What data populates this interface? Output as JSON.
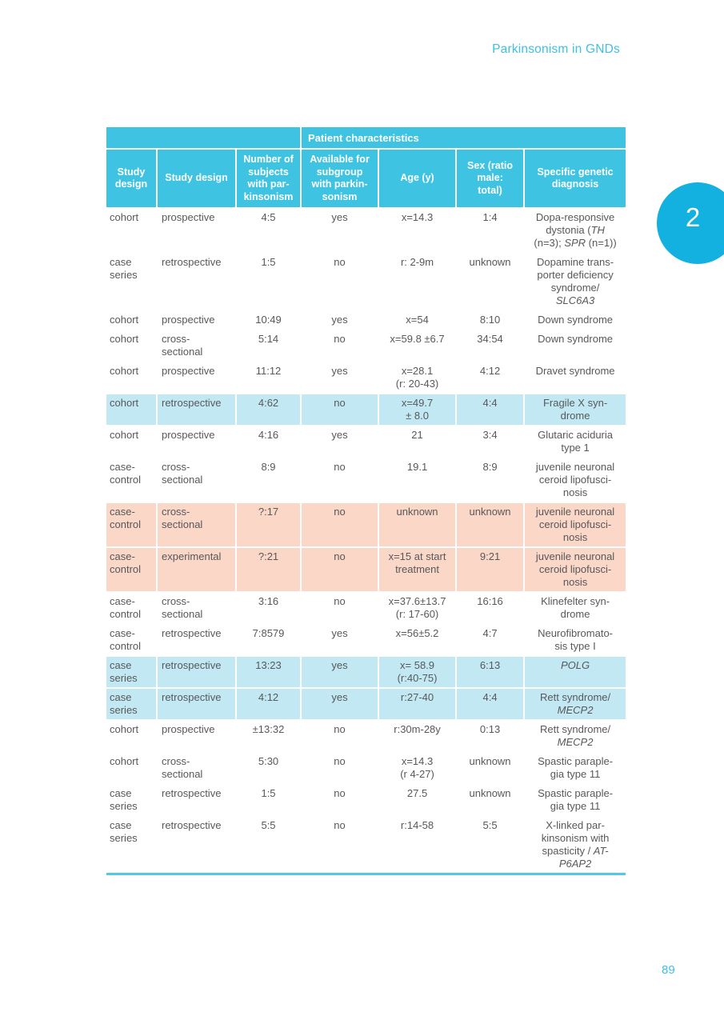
{
  "page": {
    "running_head": "Parkinsonism in GNDs",
    "chapter_number": "2",
    "page_number": "89"
  },
  "table": {
    "patient_characteristics_header": "Patient characteristics",
    "columns": [
      "Study\ndesign",
      "Study design",
      "Number of\nsubjects\nwith par-\nkinsonism",
      "Available for\nsubgroup\nwith parkin-\nsonism",
      "Age (y)",
      "Sex (ratio\nmale:\ntotal)",
      "Specific genetic\ndiagnosis"
    ],
    "rows": [
      {
        "highlight": "none",
        "cells": [
          "cohort",
          "prospective",
          "4:5",
          "yes",
          "x=14.3",
          "1:4",
          "Dopa-responsive\ndystonia (*TH*\n(n=3); *SPR* (n=1))"
        ]
      },
      {
        "highlight": "none",
        "cells": [
          "case\nseries",
          "retrospective",
          "1:5",
          "no",
          "r: 2-9m",
          "unknown",
          "Dopamine trans-\nporter deficiency\nsyndrome/\n*SLC6A3*"
        ]
      },
      {
        "highlight": "none",
        "cells": [
          "cohort",
          "prospective",
          "10:49",
          "yes",
          "x=54",
          "8:10",
          "Down syndrome"
        ]
      },
      {
        "highlight": "none",
        "cells": [
          "cohort",
          "cross-\nsectional",
          "5:14",
          "no",
          "x=59.8 ±6.7",
          "34:54",
          "Down syndrome"
        ]
      },
      {
        "highlight": "none",
        "cells": [
          "cohort",
          "prospective",
          "11:12",
          "yes",
          "x=28.1\n(r: 20-43)",
          "4:12",
          "Dravet syndrome"
        ]
      },
      {
        "highlight": "blue",
        "cells": [
          "cohort",
          "retrospective",
          "4:62",
          "no",
          "x=49.7\n± 8.0",
          "4:4",
          "Fragile X syn-\ndrome"
        ]
      },
      {
        "highlight": "none",
        "cells": [
          "cohort",
          "prospective",
          "4:16",
          "yes",
          "21",
          "3:4",
          "Glutaric aciduria\ntype 1"
        ]
      },
      {
        "highlight": "none",
        "cells": [
          "case-\ncontrol",
          "cross-\nsectional",
          "8:9",
          "no",
          "19.1",
          "8:9",
          "juvenile neuronal\nceroid lipofusci-\nnosis"
        ]
      },
      {
        "highlight": "salmon",
        "cells": [
          "case-\ncontrol",
          "cross-\nsectional",
          "?:17",
          "no",
          "unknown",
          "unknown",
          "juvenile neuronal\nceroid lipofusci-\nnosis"
        ]
      },
      {
        "highlight": "salmon",
        "cells": [
          "case-\ncontrol",
          "experimental",
          "?:21",
          "no",
          "x=15 at start\ntreatment",
          "9:21",
          "juvenile neuronal\nceroid lipofusci-\nnosis"
        ]
      },
      {
        "highlight": "none",
        "cells": [
          "case-\ncontrol",
          "cross-\nsectional",
          "3:16",
          "no",
          "x=37.6±13.7\n(r: 17-60)",
          "16:16",
          "Klinefelter syn-\ndrome"
        ]
      },
      {
        "highlight": "none",
        "cells": [
          "case-\ncontrol",
          "retrospective",
          "7:8579",
          "yes",
          "x=56±5.2",
          "4:7",
          "Neurofibromato-\nsis type I"
        ]
      },
      {
        "highlight": "blue",
        "cells": [
          "case\nseries",
          "retrospective",
          "13:23",
          "yes",
          "x= 58.9\n(r:40-75)",
          "6:13",
          "*POLG*"
        ]
      },
      {
        "highlight": "blue",
        "cells": [
          "case\nseries",
          "retrospective",
          "4:12",
          "yes",
          "r:27-40",
          "4:4",
          "Rett syndrome/\n*MECP2*"
        ]
      },
      {
        "highlight": "none",
        "cells": [
          "cohort",
          "prospective",
          "±13:32",
          "no",
          "r:30m-28y",
          "0:13",
          "Rett syndrome/\n*MECP2*"
        ]
      },
      {
        "highlight": "none",
        "cells": [
          "cohort",
          "cross-\nsectional",
          "5:30",
          "no",
          "x=14.3\n(r 4-27)",
          "unknown",
          "Spastic paraple-\ngia type 11"
        ]
      },
      {
        "highlight": "none",
        "cells": [
          "case\nseries",
          "retrospective",
          "1:5",
          "no",
          "27.5",
          "unknown",
          "Spastic paraple-\ngia type 11"
        ]
      },
      {
        "highlight": "none",
        "cells": [
          "case\nseries",
          "retrospective",
          "5:5",
          "no",
          "r:14-58",
          "5:5",
          "X-linked par-\nkinsonism with\nspasticity / *AT-*\n*P6AP2*"
        ]
      }
    ]
  },
  "colors": {
    "header_cyan": "#3fc3e3",
    "row_blue": "#c2e9f3",
    "row_salmon": "#fad7c7",
    "accent_cyan": "#3fbfe5",
    "tab_cyan": "#12b1df",
    "body_text": "#58585a",
    "bottom_border": "#4fc9e9"
  }
}
